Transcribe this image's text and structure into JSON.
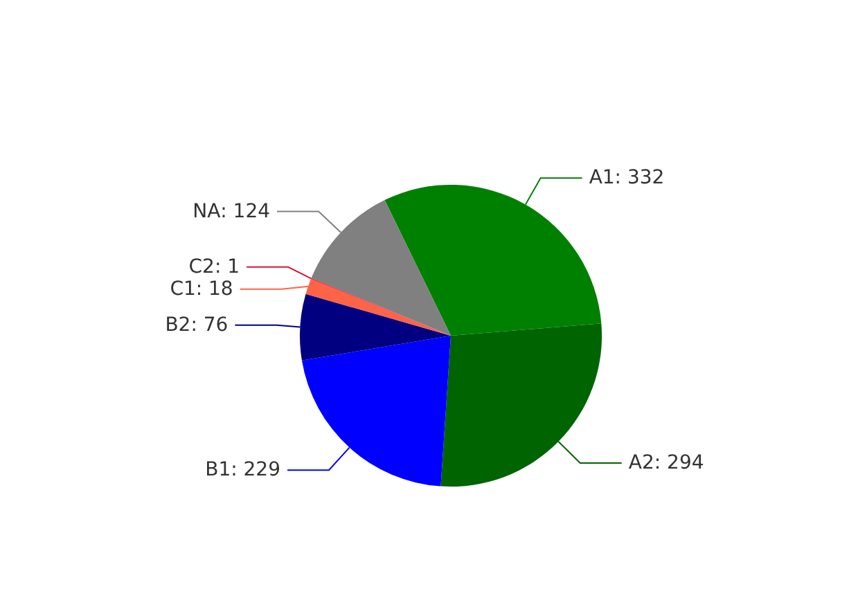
{
  "chart_data": {
    "type": "pie",
    "categories": [
      "A1",
      "A2",
      "B1",
      "B2",
      "C1",
      "C2",
      "NA"
    ],
    "values": [
      332,
      294,
      229,
      76,
      18,
      1,
      124
    ],
    "value_labels": [
      ": 332",
      ": 294",
      ": 229",
      ": 76",
      ": 18",
      ": 1",
      ": 124"
    ],
    "colors": [
      "#008000",
      "#006400",
      "#0000ff",
      "#000080",
      "#ff6347",
      "#dc143c",
      "#808080"
    ],
    "legend": false
  }
}
